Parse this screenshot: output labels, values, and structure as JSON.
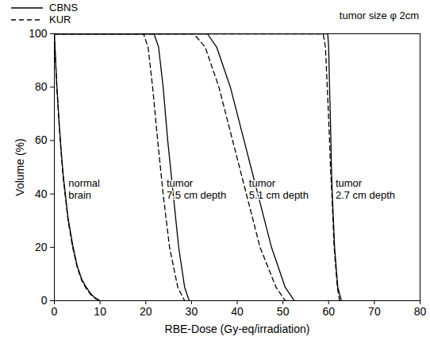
{
  "chart_data": {
    "type": "line",
    "xlabel": "RBE-Dose (Gy-eq/irradiation)",
    "ylabel": "Volume (%)",
    "xlim": [
      0,
      80
    ],
    "xticks": [
      0,
      10,
      20,
      30,
      40,
      50,
      60,
      70,
      80
    ],
    "ylim": [
      0,
      100
    ],
    "yticks": [
      0,
      20,
      40,
      60,
      80,
      100
    ],
    "grid": false,
    "legend": "top-left",
    "annotations": [
      "tumor size φ 2cm"
    ],
    "series": [
      {
        "name": "CBNS",
        "color": "#000000",
        "line_style": "solid",
        "curves": [
          {
            "label": "normal\nbrain",
            "x": [
              0,
              0.5,
              1,
              1.5,
              2,
              3,
              4,
              5,
              6,
              7,
              8,
              9,
              10
            ],
            "values": [
              100,
              82,
              68,
              56,
              46,
              31,
              21,
              13,
              8,
              5,
              2.5,
              1,
              0
            ]
          },
          {
            "label": "tumor\n7.5 cm depth",
            "x": [
              0,
              21.8,
              22.8,
              23.8,
              24.8,
              25.4,
              26.0,
              27.2,
              28.5,
              29.5
            ],
            "values": [
              100,
              100,
              95,
              80,
              60,
              50,
              40,
              20,
              5,
              0
            ]
          },
          {
            "label": "tumor\n5.1 cm depth",
            "x": [
              0,
              33.5,
              35.5,
              38.5,
              41.5,
              43,
              44.5,
              47.5,
              50.5,
              52.5
            ],
            "values": [
              100,
              100,
              95,
              80,
              60,
              50,
              40,
              20,
              5,
              0
            ]
          },
          {
            "label": "tumor\n2.7 cm depth",
            "x": [
              0,
              59.8,
              60,
              60.2,
              60.5,
              60.6,
              60.8,
              61.3,
              62,
              62.8
            ],
            "values": [
              100,
              100,
              95,
              80,
              60,
              50,
              40,
              20,
              5,
              0
            ]
          }
        ]
      },
      {
        "name": "KUR",
        "color": "#000000",
        "line_style": "dashed",
        "curves": [
          {
            "label": "normal\nbrain",
            "x": [
              0,
              0.5,
              1,
              1.5,
              2,
              3,
              4,
              5,
              6,
              7,
              8,
              9,
              10
            ],
            "values": [
              100,
              81,
              67,
              55,
              45,
              30,
              20,
              12.5,
              7.5,
              4.5,
              2.2,
              0.8,
              0
            ]
          },
          {
            "label": "tumor\n7.5 cm depth",
            "x": [
              0,
              19.5,
              20.5,
              21.5,
              22.6,
              23.2,
              23.8,
              25.2,
              27.0,
              28.5
            ],
            "values": [
              100,
              100,
              95,
              80,
              60,
              50,
              40,
              20,
              5,
              0
            ]
          },
          {
            "label": "tumor\n5.1 cm depth",
            "x": [
              0,
              30.5,
              33,
              36,
              39,
              40.5,
              42,
              45,
              48.5,
              50.5
            ],
            "values": [
              100,
              100,
              95,
              80,
              60,
              50,
              40,
              20,
              5,
              0
            ]
          },
          {
            "label": "tumor\n2.7 cm depth",
            "x": [
              0,
              58.8,
              59.3,
              59.7,
              60.2,
              60.4,
              60.7,
              61.2,
              61.9,
              62.4
            ],
            "values": [
              100,
              100,
              95,
              80,
              60,
              50,
              40,
              20,
              5,
              0
            ]
          }
        ]
      }
    ]
  }
}
